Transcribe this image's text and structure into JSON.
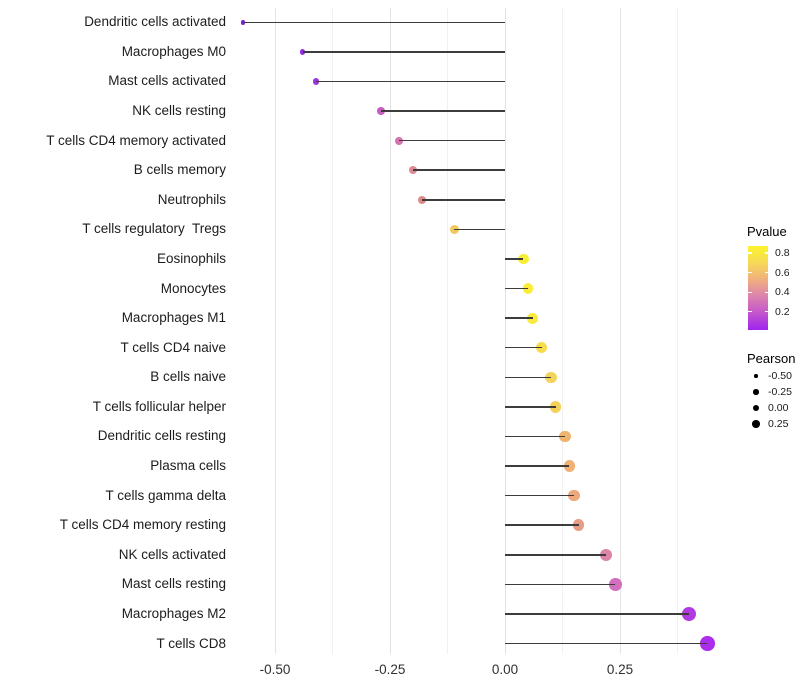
{
  "chart_data": {
    "type": "scatter",
    "subtype": "lollipop",
    "title": "",
    "xlabel": "",
    "ylabel": "",
    "x_ticks": [
      -0.5,
      -0.25,
      0,
      0.25
    ],
    "x_tick_labels": [
      "-0.50",
      "-0.25",
      "0.00",
      "0.25"
    ],
    "x_minor_ticks": [
      -0.375,
      -0.125,
      0.125,
      0.375
    ],
    "xlim": [
      -0.62,
      0.45
    ],
    "grid": "vertical major and minor gridlines, light gray, white background",
    "legend_position": "right",
    "points": [
      {
        "label": "Dendritic cells activated",
        "pearson": -0.57,
        "pvalue_approx": 0.01,
        "pvalue_color": "#7d22d8"
      },
      {
        "label": "Macrophages M0",
        "pearson": -0.44,
        "pvalue_approx": 0.05,
        "pvalue_color": "#9230df"
      },
      {
        "label": "Mast cells activated",
        "pearson": -0.41,
        "pvalue_approx": 0.07,
        "pvalue_color": "#9c35de"
      },
      {
        "label": "NK cells resting",
        "pearson": -0.27,
        "pvalue_approx": 0.25,
        "pvalue_color": "#c75fc0"
      },
      {
        "label": "T cells CD4 memory activated",
        "pearson": -0.23,
        "pvalue_approx": 0.33,
        "pvalue_color": "#d573b0"
      },
      {
        "label": "B cells memory",
        "pearson": -0.2,
        "pvalue_approx": 0.45,
        "pvalue_color": "#de8a95"
      },
      {
        "label": "Neutrophils",
        "pearson": -0.18,
        "pvalue_approx": 0.5,
        "pvalue_color": "#df8b84"
      },
      {
        "label": "T cells regulatory  Tregs",
        "pearson": -0.11,
        "pvalue_approx": 0.72,
        "pvalue_color": "#f0c95a"
      },
      {
        "label": "Eosinophils",
        "pearson": 0.04,
        "pvalue_approx": 0.86,
        "pvalue_color": "#faee32"
      },
      {
        "label": "Monocytes",
        "pearson": 0.05,
        "pvalue_approx": 0.85,
        "pvalue_color": "#f9ed38"
      },
      {
        "label": "Macrophages M1",
        "pearson": 0.06,
        "pvalue_approx": 0.84,
        "pvalue_color": "#f8ea3e"
      },
      {
        "label": "T cells CD4 naive",
        "pearson": 0.08,
        "pvalue_approx": 0.78,
        "pvalue_color": "#f6dc4e"
      },
      {
        "label": "B cells naive",
        "pearson": 0.1,
        "pvalue_approx": 0.75,
        "pvalue_color": "#f4d55b"
      },
      {
        "label": "T cells follicular helper",
        "pearson": 0.11,
        "pvalue_approx": 0.73,
        "pvalue_color": "#f4d15c"
      },
      {
        "label": "Dendritic cells resting",
        "pearson": 0.13,
        "pvalue_approx": 0.64,
        "pvalue_color": "#efb470"
      },
      {
        "label": "Plasma cells",
        "pearson": 0.14,
        "pvalue_approx": 0.62,
        "pvalue_color": "#efb175"
      },
      {
        "label": "T cells gamma delta",
        "pearson": 0.15,
        "pvalue_approx": 0.58,
        "pvalue_color": "#eda87d"
      },
      {
        "label": "T cells CD4 memory resting",
        "pearson": 0.16,
        "pvalue_approx": 0.52,
        "pvalue_color": "#e79c85"
      },
      {
        "label": "NK cells activated",
        "pearson": 0.22,
        "pvalue_approx": 0.42,
        "pvalue_color": "#dc84a6"
      },
      {
        "label": "Mast cells resting",
        "pearson": 0.24,
        "pvalue_approx": 0.3,
        "pvalue_color": "#d26fbe"
      },
      {
        "label": "Macrophages M2",
        "pearson": 0.4,
        "pvalue_approx": 0.12,
        "pvalue_color": "#b13be0"
      },
      {
        "label": "T cells CD8",
        "pearson": 0.44,
        "pvalue_approx": 0.08,
        "pvalue_color": "#ac2eec"
      }
    ],
    "legend_pvalue": {
      "title": "Pvalue",
      "tick_labels": [
        "0.8",
        "0.6",
        "0.4",
        "0.2"
      ],
      "gradient_bottom_to_top": [
        "#9f23f0",
        "#c355cc",
        "#dc82ae",
        "#f0af7e",
        "#f6d957",
        "#fcf42b"
      ]
    },
    "legend_pearson": {
      "title": "Pearson",
      "entries": [
        {
          "label": "-0.50",
          "dia": 3.5
        },
        {
          "label": "-0.25",
          "dia": 5.5
        },
        {
          "label": "0.00",
          "dia": 6.5
        },
        {
          "label": "0.25",
          "dia": 7.5
        }
      ]
    },
    "colors": {
      "stem": "#3c3c3c",
      "grid_major": "#e3e3e3",
      "grid_minor": "#f1f1f1",
      "axis_text": "#303030",
      "category_text": "#1c1c1c"
    }
  }
}
